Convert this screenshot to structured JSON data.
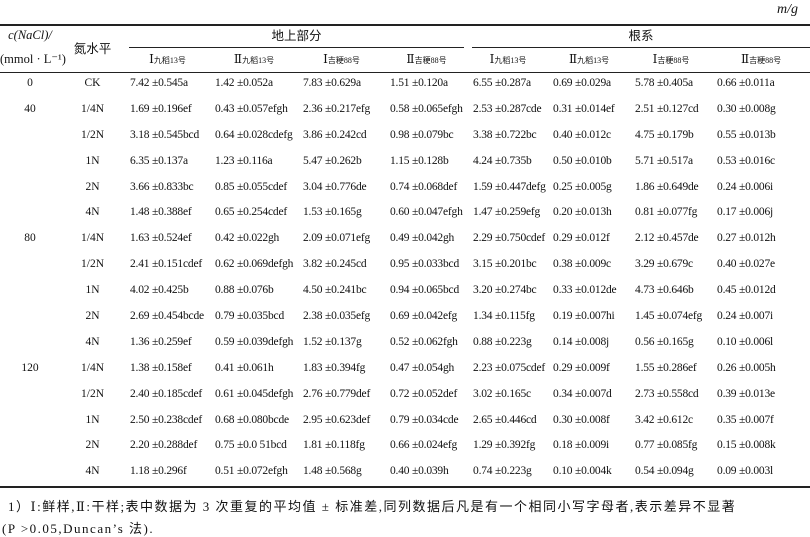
{
  "unit": "m/g",
  "header": {
    "conc_label_line1": "c(NaCl)/",
    "conc_label_line2": "(mmol · L⁻¹)",
    "nitrogen_label": "氮水平",
    "group_shoot": "地上部分",
    "group_root": "根系",
    "columns": [
      {
        "sample": "Ⅰ",
        "cultivar": "九稻13号"
      },
      {
        "sample": "Ⅱ",
        "cultivar": "九稻13号"
      },
      {
        "sample": "Ⅰ",
        "cultivar": "吉粳88号"
      },
      {
        "sample": "Ⅱ",
        "cultivar": "吉粳88号"
      },
      {
        "sample": "Ⅰ",
        "cultivar": "九稻13号"
      },
      {
        "sample": "Ⅱ",
        "cultivar": "九稻13号"
      },
      {
        "sample": "Ⅰ",
        "cultivar": "吉粳88号"
      },
      {
        "sample": "Ⅱ",
        "cultivar": "吉粳88号"
      }
    ]
  },
  "rows": [
    {
      "c": "0",
      "n": "CK",
      "v": [
        "7.42 ±0.545a",
        "1.42 ±0.052a",
        "7.83 ±0.629a",
        "1.51 ±0.120a",
        "6.55 ±0.287a",
        "0.69 ±0.029a",
        "5.78 ±0.405a",
        "0.66 ±0.011a"
      ]
    },
    {
      "c": "40",
      "n": "1/4N",
      "v": [
        "1.69 ±0.196ef",
        "0.43 ±0.057efgh",
        "2.36 ±0.217efg",
        "0.58 ±0.065efgh",
        "2.53 ±0.287cde",
        "0.31 ±0.014ef",
        "2.51 ±0.127cd",
        "0.30 ±0.008g"
      ]
    },
    {
      "c": "",
      "n": "1/2N",
      "v": [
        "3.18 ±0.545bcd",
        "0.64 ±0.028cdefg",
        "3.86 ±0.242cd",
        "0.98 ±0.079bc",
        "3.38 ±0.722bc",
        "0.40 ±0.012c",
        "4.75 ±0.179b",
        "0.55 ±0.013b"
      ]
    },
    {
      "c": "",
      "n": "1N",
      "v": [
        "6.35 ±0.137a",
        "1.23 ±0.116a",
        "5.47 ±0.262b",
        "1.15 ±0.128b",
        "4.24 ±0.735b",
        "0.50 ±0.010b",
        "5.71 ±0.517a",
        "0.53 ±0.016c"
      ]
    },
    {
      "c": "",
      "n": "2N",
      "v": [
        "3.66 ±0.833bc",
        "0.85 ±0.055cdef",
        "3.04 ±0.776de",
        "0.74 ±0.068def",
        "1.59 ±0.447defg",
        "0.25 ±0.005g",
        "1.86 ±0.649de",
        "0.24 ±0.006i"
      ]
    },
    {
      "c": "",
      "n": "4N",
      "v": [
        "1.48 ±0.388ef",
        "0.65 ±0.254cdef",
        "1.53 ±0.165g",
        "0.60 ±0.047efgh",
        "1.47 ±0.259efg",
        "0.20 ±0.013h",
        "0.81 ±0.077fg",
        "0.17 ±0.006j"
      ]
    },
    {
      "c": "80",
      "n": "1/4N",
      "v": [
        "1.63 ±0.524ef",
        "0.42 ±0.022gh",
        "2.09 ±0.071efg",
        "0.49 ±0.042gh",
        "2.29 ±0.750cdef",
        "0.29 ±0.012f",
        "2.12 ±0.457de",
        "0.27 ±0.012h"
      ]
    },
    {
      "c": "",
      "n": "1/2N",
      "v": [
        "2.41 ±0.151cdef",
        "0.62 ±0.069defgh",
        "3.82 ±0.245cd",
        "0.95 ±0.033bcd",
        "3.15 ±0.201bc",
        "0.38 ±0.009c",
        "3.29 ±0.679c",
        "0.40 ±0.027e"
      ]
    },
    {
      "c": "",
      "n": "1N",
      "v": [
        "4.02 ±0.425b",
        "0.88 ±0.076b",
        "4.50 ±0.241bc",
        "0.94 ±0.065bcd",
        "3.20 ±0.274bc",
        "0.33 ±0.012de",
        "4.73 ±0.646b",
        "0.45 ±0.012d"
      ]
    },
    {
      "c": "",
      "n": "2N",
      "v": [
        "2.69 ±0.454bcde",
        "0.79 ±0.035bcd",
        "2.38 ±0.035efg",
        "0.69 ±0.042efg",
        "1.34 ±0.115fg",
        "0.19 ±0.007hi",
        "1.45 ±0.074efg",
        "0.24 ±0.007i"
      ]
    },
    {
      "c": "",
      "n": "4N",
      "v": [
        "1.36 ±0.259ef",
        "0.59 ±0.039defgh",
        "1.52 ±0.137g",
        "0.52 ±0.062fgh",
        "0.88 ±0.223g",
        "0.14 ±0.008j",
        "0.56 ±0.165g",
        "0.10 ±0.006l"
      ]
    },
    {
      "c": "120",
      "n": "1/4N",
      "v": [
        "1.38 ±0.158ef",
        "0.41 ±0.061h",
        "1.83 ±0.394fg",
        "0.47 ±0.054gh",
        "2.23 ±0.075cdef",
        "0.29 ±0.009f",
        "1.55 ±0.286ef",
        "0.26 ±0.005h"
      ]
    },
    {
      "c": "",
      "n": "1/2N",
      "v": [
        "2.40 ±0.185cdef",
        "0.61 ±0.045defgh",
        "2.76 ±0.779def",
        "0.72 ±0.052def",
        "3.02 ±0.165c",
        "0.34 ±0.007d",
        "2.73 ±0.558cd",
        "0.39 ±0.013e"
      ]
    },
    {
      "c": "",
      "n": "1N",
      "v": [
        "2.50 ±0.238cdef",
        "0.68 ±0.080bcde",
        "2.95 ±0.623def",
        "0.79 ±0.034cde",
        "2.65 ±0.446cd",
        "0.30 ±0.008f",
        "3.42 ±0.612c",
        "0.35 ±0.007f"
      ]
    },
    {
      "c": "",
      "n": "2N",
      "v": [
        "2.20 ±0.288def",
        "0.75 ±0.0 51bcd",
        "1.81 ±0.118fg",
        "0.66 ±0.024efg",
        "1.29 ±0.392fg",
        "0.18 ±0.009i",
        "0.77 ±0.085fg",
        "0.15 ±0.008k"
      ]
    },
    {
      "c": "",
      "n": "4N",
      "v": [
        "1.18 ±0.296f",
        "0.51 ±0.072efgh",
        "1.48 ±0.568g",
        "0.40 ±0.039h",
        "0.74 ±0.223g",
        "0.10 ±0.004k",
        "0.54 ±0.094g",
        "0.09 ±0.003l"
      ]
    }
  ],
  "footnote": {
    "line1": "1）Ⅰ:鲜样,Ⅱ:干样;表中数据为 3 次重复的平均值 ± 标准差,同列数据后凡是有一个相同小写字母者,表示差异不显著",
    "line2": "(P >0.05,Duncan’s 法)."
  }
}
